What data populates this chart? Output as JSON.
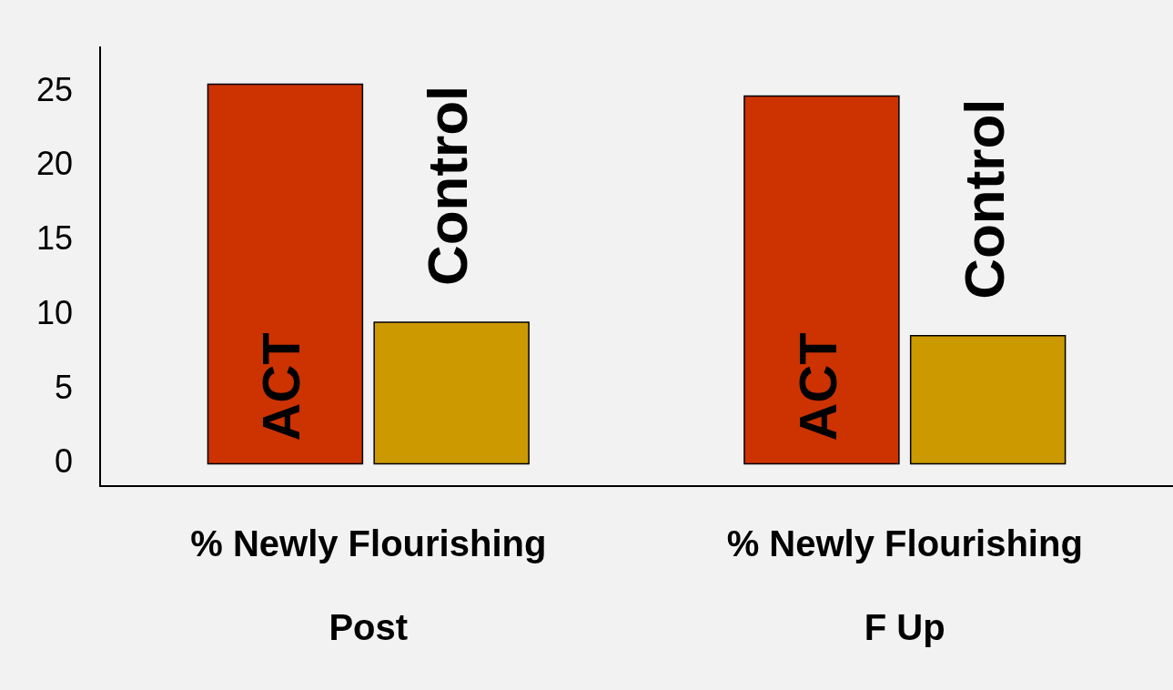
{
  "chart_data": {
    "type": "bar",
    "categories": [
      "% Newly Flourishing\nPost",
      "% Newly Flourishing\nF Up"
    ],
    "series": [
      {
        "name": "ACT",
        "color": "#cc3300",
        "values": [
          25.5,
          24.7
        ]
      },
      {
        "name": "Control",
        "color": "#cc9900",
        "values": [
          9.5,
          8.6
        ]
      }
    ],
    "ylim": [
      -1.5,
      28
    ],
    "yticks": [
      0,
      5,
      10,
      15,
      20,
      25
    ],
    "grid": false,
    "legend": false
  }
}
